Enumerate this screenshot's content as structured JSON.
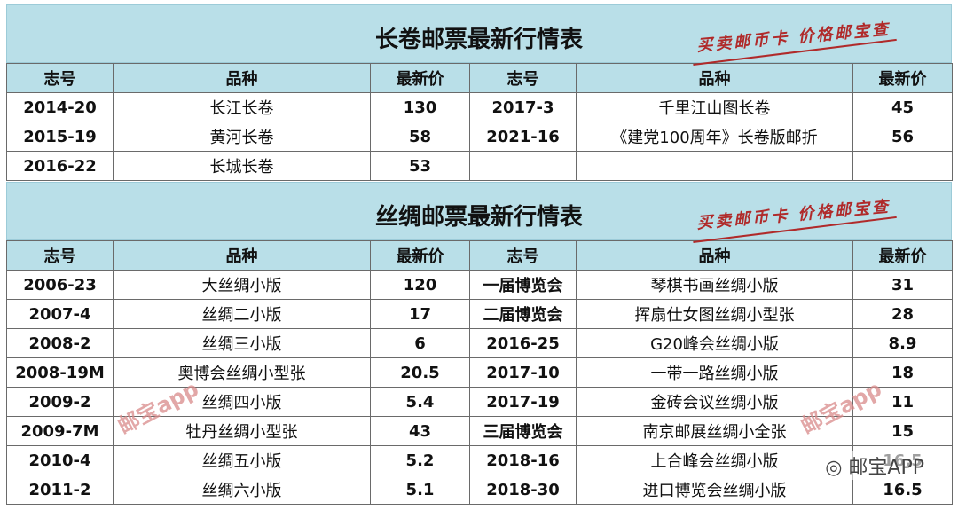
{
  "section1": {
    "title": "长卷邮票最新行情表",
    "stamp": "买卖邮币卡 价格邮宝查",
    "headers": [
      "志号",
      "品种",
      "最新价",
      "志号",
      "品种",
      "最新价"
    ],
    "rows": [
      [
        "2014-20",
        "长江长卷",
        "130",
        "2017-3",
        "千里江山图长卷",
        "45"
      ],
      [
        "2015-19",
        "黄河长卷",
        "58",
        "2021-16",
        "《建党100周年》长卷版邮折",
        "56"
      ],
      [
        "2016-22",
        "长城长卷",
        "53",
        "",
        "",
        ""
      ]
    ]
  },
  "section2": {
    "title": "丝绸邮票最新行情表",
    "stamp": "买卖邮币卡 价格邮宝查",
    "headers": [
      "志号",
      "品种",
      "最新价",
      "志号",
      "品种",
      "最新价"
    ],
    "rows": [
      [
        "2006-23",
        "大丝绸小版",
        "120",
        "一届博览会",
        "琴棋书画丝绸小版",
        "31"
      ],
      [
        "2007-4",
        "丝绸二小版",
        "17",
        "二届博览会",
        "挥扇仕女图丝绸小型张",
        "28"
      ],
      [
        "2008-2",
        "丝绸三小版",
        "6",
        "2016-25",
        "G20峰会丝绸小版",
        "8.9"
      ],
      [
        "2008-19M",
        "奥博会丝绸小型张",
        "20.5",
        "2017-10",
        "一带一路丝绸小版",
        "18"
      ],
      [
        "2009-2",
        "丝绸四小版",
        "5.4",
        "2017-19",
        "金砖会议丝绸小版",
        "11"
      ],
      [
        "2009-7M",
        "牡丹丝绸小型张",
        "43",
        "三届博览会",
        "南京邮展丝绸小全张",
        "15"
      ],
      [
        "2010-4",
        "丝绸五小版",
        "5.2",
        "2018-16",
        "上合峰会丝绸小版",
        "16.5"
      ],
      [
        "2011-2",
        "丝绸六小版",
        "5.1",
        "2018-30",
        "进口博览会丝绸小版",
        "16.5"
      ]
    ]
  },
  "watermarks": [
    "邮宝app",
    "邮宝app"
  ],
  "wechat_label": "邮宝APP"
}
